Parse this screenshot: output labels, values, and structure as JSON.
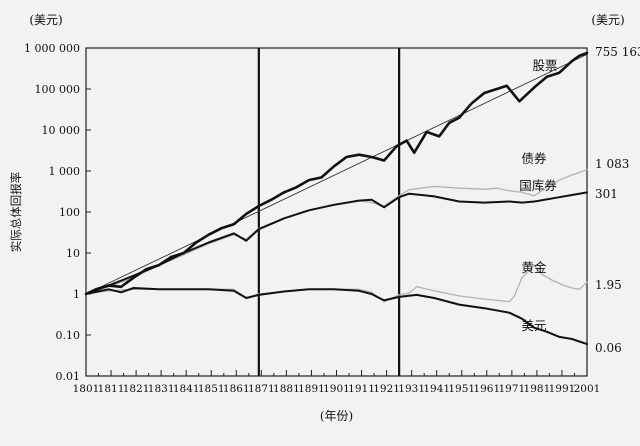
{
  "chart_data": {
    "type": "line",
    "title": "",
    "xlabel": "(年份)",
    "ylabel": "实际总体回报率",
    "y_unit_left": "(美元)",
    "y_unit_right": "(美元)",
    "y_scale": "log",
    "ylim": [
      0.01,
      1000000
    ],
    "xlim": [
      1801,
      2001
    ],
    "x_ticks": [
      "1801",
      "1811",
      "1821",
      "1831",
      "1841",
      "1851",
      "1861",
      "1871",
      "1881",
      "1891",
      "1901",
      "1911",
      "1921",
      "1931",
      "1941",
      "1951",
      "1961",
      "1971",
      "1981",
      "1991",
      "2001"
    ],
    "y_ticks": [
      {
        "value": 1000000,
        "label": "1 000 000"
      },
      {
        "value": 100000,
        "label": "100 000"
      },
      {
        "value": 10000,
        "label": "10 000"
      },
      {
        "value": 1000,
        "label": "1 000"
      },
      {
        "value": 100,
        "label": "100"
      },
      {
        "value": 10,
        "label": "10"
      },
      {
        "value": 1,
        "label": "1"
      },
      {
        "value": 0.1,
        "label": "0.10"
      },
      {
        "value": 0.01,
        "label": "0.01"
      }
    ],
    "vertical_lines": [
      1870,
      1926
    ],
    "trend_line": {
      "x": [
        1801,
        2001
      ],
      "y": [
        1,
        700000
      ]
    },
    "grid": false,
    "series": [
      {
        "name": "股票",
        "end_label": "755 163",
        "color": "#111111",
        "x": [
          1801,
          1805,
          1810,
          1815,
          1820,
          1825,
          1830,
          1835,
          1840,
          1845,
          1850,
          1855,
          1860,
          1865,
          1870,
          1875,
          1880,
          1885,
          1890,
          1895,
          1900,
          1905,
          1910,
          1915,
          1920,
          1925,
          1929,
          1932,
          1937,
          1942,
          1946,
          1950,
          1955,
          1960,
          1965,
          1969,
          1974,
          1980,
          1985,
          1990,
          1995,
          1998,
          2001
        ],
        "y": [
          1,
          1.3,
          1.6,
          1.5,
          2.5,
          4,
          5,
          8,
          10,
          18,
          28,
          40,
          50,
          90,
          140,
          200,
          300,
          400,
          600,
          700,
          1300,
          2200,
          2500,
          2200,
          1800,
          4000,
          5500,
          2800,
          9000,
          7000,
          15000,
          20000,
          45000,
          80000,
          100000,
          120000,
          50000,
          110000,
          200000,
          250000,
          480000,
          650000,
          755163
        ]
      },
      {
        "name": "债券",
        "end_label": "1 083",
        "color": "#b3b3b3",
        "x": [
          1801,
          1810,
          1820,
          1830,
          1840,
          1850,
          1860,
          1865,
          1870,
          1880,
          1890,
          1900,
          1910,
          1915,
          1920,
          1926,
          1930,
          1940,
          1950,
          1960,
          1965,
          1970,
          1975,
          1980,
          1985,
          1990,
          1995,
          2001
        ],
        "y": [
          1,
          1.5,
          2.5,
          5,
          9,
          17,
          28,
          22,
          40,
          70,
          110,
          150,
          190,
          170,
          140,
          250,
          350,
          420,
          380,
          360,
          380,
          330,
          300,
          250,
          400,
          600,
          800,
          1083
        ]
      },
      {
        "name": "国库券",
        "end_label": "301",
        "color": "#111111",
        "x": [
          1801,
          1810,
          1820,
          1830,
          1840,
          1850,
          1860,
          1865,
          1870,
          1880,
          1890,
          1900,
          1910,
          1915,
          1920,
          1926,
          1930,
          1935,
          1940,
          1950,
          1960,
          1970,
          1975,
          1980,
          1990,
          1995,
          2001
        ],
        "y": [
          1,
          1.6,
          2.8,
          5,
          10,
          18,
          30,
          20,
          38,
          70,
          110,
          150,
          190,
          200,
          130,
          230,
          280,
          260,
          240,
          180,
          170,
          180,
          170,
          180,
          230,
          260,
          301
        ]
      },
      {
        "name": "黄金",
        "end_label": "1.95",
        "color": "#b3b3b3",
        "x": [
          1801,
          1810,
          1820,
          1830,
          1840,
          1850,
          1860,
          1865,
          1870,
          1880,
          1890,
          1900,
          1910,
          1915,
          1920,
          1926,
          1930,
          1933,
          1940,
          1950,
          1960,
          1965,
          1970,
          1972,
          1975,
          1980,
          1983,
          1987,
          1992,
          1995,
          1998,
          2001
        ],
        "y": [
          1,
          1.2,
          1.3,
          1.3,
          1.3,
          1.3,
          1.3,
          0.8,
          1,
          1.15,
          1.3,
          1.3,
          1.3,
          1.1,
          0.65,
          0.95,
          1.05,
          1.5,
          1.2,
          0.9,
          0.75,
          0.7,
          0.65,
          0.9,
          2.5,
          5,
          3,
          2.2,
          1.6,
          1.4,
          1.3,
          1.95
        ]
      },
      {
        "name": "美元",
        "end_label": "0.06",
        "color": "#111111",
        "x": [
          1801,
          1810,
          1815,
          1820,
          1830,
          1840,
          1850,
          1860,
          1865,
          1870,
          1880,
          1890,
          1900,
          1910,
          1915,
          1920,
          1926,
          1933,
          1940,
          1950,
          1960,
          1970,
          1975,
          1980,
          1985,
          1990,
          1995,
          2001
        ],
        "y": [
          1,
          1.3,
          1.1,
          1.4,
          1.3,
          1.3,
          1.3,
          1.2,
          0.8,
          0.95,
          1.15,
          1.3,
          1.3,
          1.2,
          1.0,
          0.7,
          0.85,
          0.95,
          0.8,
          0.55,
          0.45,
          0.35,
          0.25,
          0.15,
          0.12,
          0.09,
          0.08,
          0.06
        ]
      }
    ]
  }
}
